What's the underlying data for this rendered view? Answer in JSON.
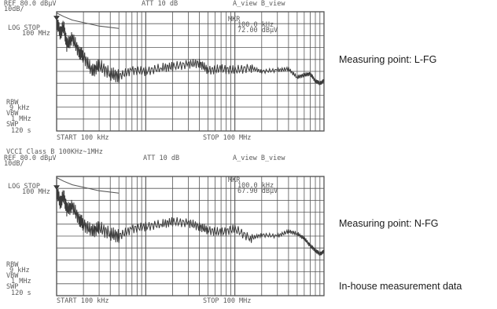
{
  "chart_data": [
    {
      "type": "line",
      "id": "L-FG",
      "header_lines": [
        "REF 80.0 dBµV",
        "10dB/",
        "ATT 10 dB",
        "A_view B_view"
      ],
      "left_annotations": [
        "LOG STOP",
        "100 MHz",
        "RBW",
        "9 kHz",
        "VBW",
        "1 MHz",
        "SWP",
        "120 s"
      ],
      "marker": [
        "MKR",
        "100.0 kHz",
        "72.00 dBµV"
      ],
      "footer": {
        "start": "START 100 kHz",
        "stop": "STOP 100 MHz"
      },
      "ref_level": 80,
      "scale_per_div": 10,
      "x_log_range_hz": [
        100000,
        100000000
      ],
      "limit_line": {
        "x": [
          0.1,
          0.12,
          0.15,
          0.2,
          0.3,
          0.5
        ],
        "y": [
          79,
          76,
          73,
          71,
          68,
          66
        ]
      },
      "series": [
        {
          "x": [
            0.1,
            0.11,
            0.12,
            0.13,
            0.15,
            0.18,
            0.2,
            0.25,
            0.3,
            0.4,
            0.5,
            0.7,
            1,
            1.5,
            2,
            3,
            4,
            5,
            7,
            10,
            15,
            20,
            30,
            40,
            50,
            60,
            70,
            80,
            90,
            100
          ],
          "y": [
            72,
            62,
            68,
            52,
            58,
            46,
            43,
            30,
            35,
            28,
            26,
            31,
            30,
            33,
            34,
            36,
            37,
            31,
            32,
            31,
            33,
            30,
            31,
            32,
            25,
            27,
            28,
            22,
            20,
            22
          ]
        }
      ]
    },
    {
      "type": "line",
      "id": "N-FG",
      "header_lines": [
        "VCCI  Class B 100KHz~1MHz",
        "REF 80.0 dBµV",
        "10dB/",
        "ATT 10 dB",
        "A_view B_view"
      ],
      "left_annotations": [
        "LOG STOP",
        "100 MHz",
        "RBW",
        "9 kHz",
        "VBW",
        "1 MHz",
        "SWP",
        "120 s"
      ],
      "marker": [
        "MKR",
        "100.0 kHz",
        "67.90 dBµV"
      ],
      "footer": {
        "start": "START 100 kHz",
        "stop": "STOP 100 MHz"
      },
      "ref_level": 80,
      "scale_per_div": 10,
      "x_log_range_hz": [
        100000,
        100000000
      ],
      "limit_line": {
        "x": [
          0.1,
          0.12,
          0.15,
          0.2,
          0.3,
          0.5
        ],
        "y": [
          79,
          76,
          73,
          71,
          68,
          66
        ]
      },
      "series": [
        {
          "x": [
            0.1,
            0.11,
            0.12,
            0.13,
            0.15,
            0.18,
            0.2,
            0.25,
            0.3,
            0.4,
            0.5,
            0.7,
            1,
            1.5,
            2,
            3,
            4,
            5,
            7,
            10,
            15,
            20,
            30,
            40,
            50,
            60,
            70,
            80,
            90,
            100
          ],
          "y": [
            68,
            58,
            64,
            52,
            55,
            44,
            40,
            34,
            37,
            32,
            30,
            36,
            38,
            40,
            42,
            41,
            38,
            35,
            33,
            36,
            28,
            31,
            30,
            34,
            32,
            28,
            22,
            18,
            15,
            17
          ]
        }
      ]
    }
  ],
  "captions": {
    "top": "Measuring point: L-FG",
    "bottom": "Measuring point: N-FG",
    "source": "In-house measurement data"
  }
}
